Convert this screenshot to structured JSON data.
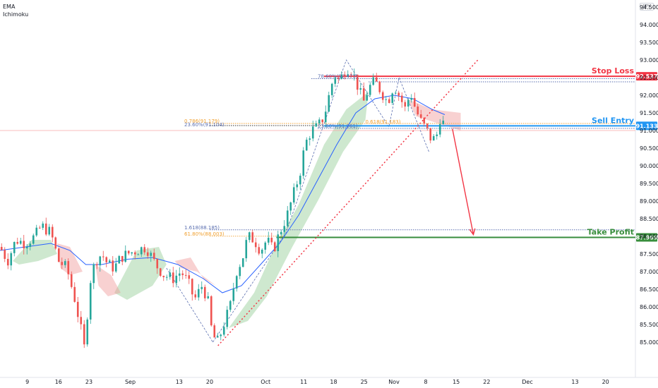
{
  "legend": {
    "ema": "EMA",
    "ichimoku": "Ichimoku"
  },
  "currency": "JPY",
  "colors": {
    "up": "#26a69a",
    "down": "#ef5350",
    "ema": "#2962ff",
    "cloud_bull": "#a5d6a7",
    "cloud_bear": "#ef9a9a",
    "stop": "#f23645",
    "entry": "#2196f3",
    "profit": "#388e3c",
    "fib_gold": "#f0a030",
    "fib_blue": "#5b6fb0"
  },
  "chart_data": {
    "type": "candlestick",
    "title": "",
    "ylim": [
      84.0,
      94.7
    ],
    "y_ticks": [
      85.0,
      85.5,
      86.0,
      86.5,
      87.0,
      87.5,
      88.0,
      88.5,
      89.0,
      89.5,
      90.0,
      90.5,
      91.0,
      91.5,
      92.0,
      92.5,
      93.0,
      93.5,
      94.0,
      94.5
    ],
    "y_tick_labels": [
      "85.000",
      "85.500",
      "86.000",
      "86.500",
      "87.000",
      "87.500",
      "88.000",
      "88.500",
      "89.000",
      "89.500",
      "90.000",
      "90.500",
      "91.000",
      "91.500",
      "92.000",
      "92.500",
      "93.000",
      "93.500",
      "94.000",
      "94.500"
    ],
    "x_ticks": [
      {
        "label": "9",
        "t": 0.043
      },
      {
        "label": "16",
        "t": 0.092
      },
      {
        "label": "23",
        "t": 0.14
      },
      {
        "label": "Sep",
        "t": 0.205
      },
      {
        "label": "13",
        "t": 0.282
      },
      {
        "label": "20",
        "t": 0.33
      },
      {
        "label": "Oct",
        "t": 0.418
      },
      {
        "label": "11",
        "t": 0.478
      },
      {
        "label": "18",
        "t": 0.525
      },
      {
        "label": "25",
        "t": 0.573
      },
      {
        "label": "Nov",
        "t": 0.62
      },
      {
        "label": "8",
        "t": 0.67
      },
      {
        "label": "15",
        "t": 0.718
      },
      {
        "label": "22",
        "t": 0.766
      },
      {
        "label": "Dec",
        "t": 0.83
      },
      {
        "label": "13",
        "t": 0.905
      },
      {
        "label": "20",
        "t": 0.953
      }
    ],
    "price_path": [
      [
        0.0,
        87.7
      ],
      [
        0.012,
        87.3
      ],
      [
        0.025,
        87.9
      ],
      [
        0.04,
        87.8
      ],
      [
        0.055,
        88.0
      ],
      [
        0.065,
        88.3
      ],
      [
        0.08,
        88.1
      ],
      [
        0.092,
        87.3
      ],
      [
        0.105,
        87.1
      ],
      [
        0.118,
        86.2
      ],
      [
        0.128,
        85.3
      ],
      [
        0.134,
        84.7
      ],
      [
        0.14,
        86.6
      ],
      [
        0.15,
        87.3
      ],
      [
        0.16,
        87.5
      ],
      [
        0.17,
        87.2
      ],
      [
        0.18,
        87.1
      ],
      [
        0.19,
        87.4
      ],
      [
        0.2,
        87.5
      ],
      [
        0.215,
        87.6
      ],
      [
        0.23,
        87.7
      ],
      [
        0.245,
        87.2
      ],
      [
        0.258,
        86.9
      ],
      [
        0.272,
        86.8
      ],
      [
        0.285,
        87.0
      ],
      [
        0.296,
        86.7
      ],
      [
        0.306,
        86.2
      ],
      [
        0.318,
        86.6
      ],
      [
        0.327,
        86.2
      ],
      [
        0.334,
        85.2
      ],
      [
        0.343,
        85.0
      ],
      [
        0.352,
        85.5
      ],
      [
        0.362,
        86.0
      ],
      [
        0.372,
        87.0
      ],
      [
        0.382,
        87.4
      ],
      [
        0.39,
        88.0
      ],
      [
        0.4,
        87.9
      ],
      [
        0.41,
        87.6
      ],
      [
        0.42,
        87.9
      ],
      [
        0.43,
        87.6
      ],
      [
        0.44,
        88.1
      ],
      [
        0.452,
        88.6
      ],
      [
        0.462,
        89.2
      ],
      [
        0.472,
        89.8
      ],
      [
        0.48,
        90.6
      ],
      [
        0.49,
        91.0
      ],
      [
        0.5,
        91.1
      ],
      [
        0.51,
        91.4
      ],
      [
        0.518,
        92.0
      ],
      [
        0.526,
        92.6
      ],
      [
        0.534,
        92.4
      ],
      [
        0.542,
        92.7
      ],
      [
        0.55,
        92.8
      ],
      [
        0.556,
        92.6
      ],
      [
        0.564,
        92.2
      ],
      [
        0.572,
        91.8
      ],
      [
        0.58,
        92.2
      ],
      [
        0.59,
        92.4
      ],
      [
        0.6,
        92.1
      ],
      [
        0.61,
        91.8
      ],
      [
        0.62,
        92.3
      ],
      [
        0.628,
        92.0
      ],
      [
        0.638,
        91.6
      ],
      [
        0.646,
        92.1
      ],
      [
        0.654,
        91.6
      ],
      [
        0.664,
        91.2
      ],
      [
        0.672,
        91.0
      ],
      [
        0.68,
        90.7
      ],
      [
        0.688,
        90.9
      ],
      [
        0.694,
        91.5
      ],
      [
        0.7,
        91.0
      ]
    ],
    "ema_path": [
      [
        0.0,
        87.6
      ],
      [
        0.04,
        87.7
      ],
      [
        0.08,
        87.8
      ],
      [
        0.11,
        87.6
      ],
      [
        0.135,
        87.2
      ],
      [
        0.16,
        87.2
      ],
      [
        0.2,
        87.35
      ],
      [
        0.24,
        87.4
      ],
      [
        0.28,
        87.2
      ],
      [
        0.32,
        86.8
      ],
      [
        0.35,
        86.4
      ],
      [
        0.38,
        86.6
      ],
      [
        0.41,
        87.2
      ],
      [
        0.44,
        87.8
      ],
      [
        0.47,
        88.6
      ],
      [
        0.5,
        89.6
      ],
      [
        0.53,
        90.6
      ],
      [
        0.56,
        91.5
      ],
      [
        0.59,
        91.9
      ],
      [
        0.62,
        92.0
      ],
      [
        0.65,
        91.9
      ],
      [
        0.68,
        91.6
      ],
      [
        0.7,
        91.45
      ]
    ],
    "cloud_bull": [
      [
        [
          0.02,
          87.3
        ],
        [
          0.05,
          87.9
        ],
        [
          0.08,
          87.9
        ],
        [
          0.09,
          87.5
        ],
        [
          0.06,
          87.3
        ],
        [
          0.03,
          87.2
        ]
      ],
      [
        [
          0.18,
          86.4
        ],
        [
          0.215,
          87.6
        ],
        [
          0.25,
          87.7
        ],
        [
          0.262,
          87.2
        ],
        [
          0.24,
          86.6
        ],
        [
          0.2,
          86.2
        ]
      ],
      [
        [
          0.36,
          85.4
        ],
        [
          0.4,
          86.4
        ],
        [
          0.43,
          87.6
        ],
        [
          0.47,
          88.9
        ],
        [
          0.51,
          90.6
        ],
        [
          0.545,
          91.6
        ],
        [
          0.58,
          92.1
        ],
        [
          0.575,
          91.3
        ],
        [
          0.54,
          90.4
        ],
        [
          0.5,
          89.0
        ],
        [
          0.46,
          87.7
        ],
        [
          0.42,
          86.3
        ],
        [
          0.39,
          85.6
        ]
      ]
    ],
    "cloud_bear": [
      [
        [
          0.09,
          87.8
        ],
        [
          0.11,
          87.7
        ],
        [
          0.13,
          87.0
        ],
        [
          0.11,
          86.9
        ],
        [
          0.095,
          87.1
        ]
      ],
      [
        [
          0.15,
          87.2
        ],
        [
          0.175,
          86.9
        ],
        [
          0.19,
          86.4
        ],
        [
          0.17,
          86.3
        ],
        [
          0.155,
          86.6
        ]
      ],
      [
        [
          0.275,
          87.3
        ],
        [
          0.3,
          87.4
        ],
        [
          0.32,
          86.8
        ],
        [
          0.34,
          86.6
        ],
        [
          0.31,
          87.0
        ],
        [
          0.285,
          87.1
        ]
      ],
      [
        [
          0.64,
          91.9
        ],
        [
          0.68,
          91.6
        ],
        [
          0.725,
          91.5
        ],
        [
          0.725,
          91.0
        ],
        [
          0.69,
          91.2
        ],
        [
          0.655,
          91.4
        ]
      ]
    ],
    "levels": [
      {
        "name": "Stop Loss",
        "value": 92.537,
        "label": "92.537"
      },
      {
        "name": "Sell Entry",
        "value": 91.133,
        "label": "91.133"
      },
      {
        "name": "Take Profit",
        "value": 87.969,
        "label": "87.969"
      }
    ],
    "fib_labels": [
      {
        "text": "78.60%(92.471)",
        "t": 0.5,
        "value": 92.47,
        "color": "blue"
      },
      {
        "text": "0.786(91.179)",
        "t": 0.29,
        "value": 91.2,
        "color": "gold"
      },
      {
        "text": "23.60%(91.104)",
        "t": 0.29,
        "value": 91.1,
        "color": "blue"
      },
      {
        "text": "0.618(91.183)",
        "t": 0.575,
        "value": 91.18,
        "color": "gold"
      },
      {
        "text": "23.60%(91.061)",
        "t": 0.5,
        "value": 91.06,
        "color": "blue"
      },
      {
        "text": "1.618(88.185)",
        "t": 0.29,
        "value": 88.185,
        "color": "blue"
      },
      {
        "text": "61.80%(88.003)",
        "t": 0.29,
        "value": 88.003,
        "color": "gold"
      }
    ],
    "trendline": [
      [
        0.343,
        84.9
      ],
      [
        0.752,
        93.0
      ]
    ],
    "arrow": [
      [
        0.712,
        91.05
      ],
      [
        0.745,
        88.05
      ]
    ],
    "horizontal_red": 91.0
  }
}
